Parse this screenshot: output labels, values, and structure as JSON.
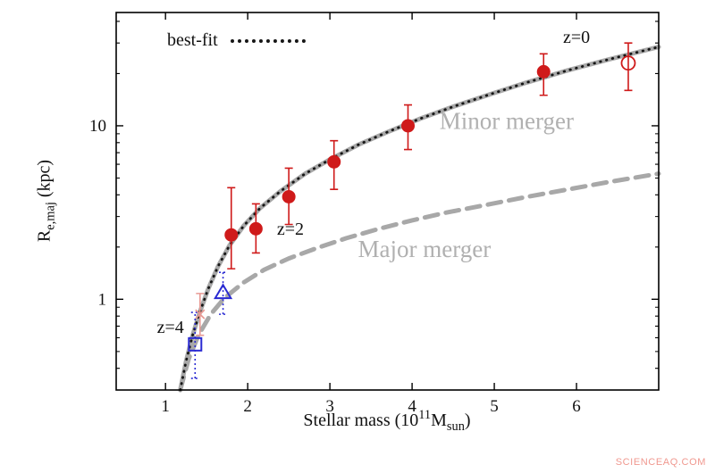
{
  "figure": {
    "legend_label": "best-fit",
    "watermark": "SCIENCEAQ.COM",
    "xlabel": {
      "prefix": "Stellar mass (10",
      "sup": "11",
      "mid": "M",
      "sub": "sun",
      "suffix": ")"
    },
    "ylabel": {
      "prefix": "R",
      "sub": "e,maj",
      "suffix": " (kpc)"
    }
  },
  "chart_data": {
    "type": "line",
    "title": "",
    "x_axis": {
      "label": "Stellar mass (10^11 Msun)",
      "scale": "linear",
      "lim": [
        0.4,
        7.0
      ],
      "ticks": [
        1,
        2,
        3,
        4,
        5,
        6
      ]
    },
    "y_axis": {
      "label": "Re,maj (kpc)",
      "scale": "log",
      "lim": [
        0.3,
        45
      ],
      "ticks": [
        1,
        10
      ],
      "minor_ticks": [
        0.4,
        0.5,
        0.6,
        0.7,
        0.8,
        0.9,
        2,
        3,
        4,
        5,
        6,
        7,
        8,
        9,
        20,
        30,
        40
      ]
    },
    "series": [
      {
        "name": "Minor merger",
        "style": "solid",
        "color": "#a8a8a8",
        "width": 5,
        "points": [
          [
            1.18,
            0.3
          ],
          [
            1.25,
            0.44
          ],
          [
            1.33,
            0.62
          ],
          [
            1.42,
            0.85
          ],
          [
            1.52,
            1.15
          ],
          [
            1.64,
            1.55
          ],
          [
            1.78,
            2.05
          ],
          [
            1.95,
            2.65
          ],
          [
            2.15,
            3.35
          ],
          [
            2.4,
            4.2
          ],
          [
            2.7,
            5.3
          ],
          [
            3.0,
            6.4
          ],
          [
            3.35,
            7.8
          ],
          [
            3.7,
            9.2
          ],
          [
            4.1,
            11.0
          ],
          [
            4.5,
            12.9
          ],
          [
            4.95,
            15.2
          ],
          [
            5.4,
            17.8
          ],
          [
            5.9,
            20.9
          ],
          [
            6.4,
            24.2
          ],
          [
            7.0,
            28.5
          ]
        ]
      },
      {
        "name": "Major merger",
        "style": "dashed",
        "color": "#a8a8a8",
        "width": 5,
        "points": [
          [
            1.18,
            0.3
          ],
          [
            1.28,
            0.45
          ],
          [
            1.4,
            0.62
          ],
          [
            1.55,
            0.82
          ],
          [
            1.72,
            1.02
          ],
          [
            1.95,
            1.25
          ],
          [
            2.2,
            1.48
          ],
          [
            2.5,
            1.72
          ],
          [
            2.85,
            1.98
          ],
          [
            3.2,
            2.25
          ],
          [
            3.6,
            2.55
          ],
          [
            4.0,
            2.85
          ],
          [
            4.4,
            3.15
          ],
          [
            4.9,
            3.5
          ],
          [
            5.4,
            3.9
          ],
          [
            5.9,
            4.3
          ],
          [
            6.4,
            4.75
          ],
          [
            7.0,
            5.3
          ]
        ]
      },
      {
        "name": "best-fit",
        "style": "dotted",
        "color": "#151515",
        "width": 2.8,
        "points": [
          [
            1.18,
            0.3
          ],
          [
            1.25,
            0.44
          ],
          [
            1.33,
            0.62
          ],
          [
            1.42,
            0.85
          ],
          [
            1.52,
            1.15
          ],
          [
            1.64,
            1.55
          ],
          [
            1.78,
            2.05
          ],
          [
            1.95,
            2.65
          ],
          [
            2.15,
            3.35
          ],
          [
            2.4,
            4.2
          ],
          [
            2.7,
            5.3
          ],
          [
            3.0,
            6.4
          ],
          [
            3.35,
            7.8
          ],
          [
            3.7,
            9.2
          ],
          [
            4.1,
            11.0
          ],
          [
            4.5,
            12.9
          ],
          [
            4.95,
            15.2
          ],
          [
            5.4,
            17.8
          ],
          [
            5.9,
            20.9
          ],
          [
            6.4,
            24.2
          ],
          [
            7.0,
            28.5
          ]
        ]
      }
    ],
    "scatter": [
      {
        "name": "red filled circles",
        "marker": "circle-filled",
        "color": "#cf1a1a",
        "size": 7,
        "err": "solid",
        "points": [
          {
            "x": 1.8,
            "y": 2.35,
            "lo": 1.5,
            "hi": 4.4
          },
          {
            "x": 2.1,
            "y": 2.55,
            "lo": 1.85,
            "hi": 3.55
          },
          {
            "x": 2.5,
            "y": 3.9,
            "lo": 2.7,
            "hi": 5.7
          },
          {
            "x": 3.05,
            "y": 6.2,
            "lo": 4.3,
            "hi": 8.2
          },
          {
            "x": 3.95,
            "y": 10.0,
            "lo": 7.3,
            "hi": 13.2
          },
          {
            "x": 5.6,
            "y": 20.5,
            "lo": 15.0,
            "hi": 26.0
          }
        ]
      },
      {
        "name": "red open circle",
        "marker": "circle-open",
        "color": "#cf1a1a",
        "size": 7.5,
        "err": "solid",
        "points": [
          {
            "x": 6.63,
            "y": 23.0,
            "lo": 16.0,
            "hi": 30.0
          }
        ]
      },
      {
        "name": "blue open square z4",
        "marker": "square-open",
        "color": "#2a2ad2",
        "size": 7,
        "err": "dotted",
        "points": [
          {
            "x": 1.36,
            "y": 0.55,
            "lo": 0.35,
            "hi": 0.84
          }
        ]
      },
      {
        "name": "blue open triangle z4",
        "marker": "triangle-open",
        "color": "#2a2ad2",
        "size": 8,
        "err": "dotted",
        "points": [
          {
            "x": 1.7,
            "y": 1.1,
            "lo": 0.82,
            "hi": 1.43
          }
        ]
      },
      {
        "name": "light red cross",
        "marker": "cross",
        "color": "#e89a94",
        "size": 5,
        "err": "solid",
        "points": [
          {
            "x": 1.42,
            "y": 0.82,
            "lo": 0.62,
            "hi": 1.08
          }
        ]
      }
    ],
    "annotations": [
      {
        "text": "z=0",
        "x": 6.0,
        "y": 30.0,
        "color": "#111111",
        "size": 20
      },
      {
        "text": "z=2",
        "x": 2.52,
        "y": 2.35,
        "color": "#111111",
        "size": 20
      },
      {
        "text": "z=4",
        "x": 1.06,
        "y": 0.64,
        "color": "#111111",
        "size": 20
      },
      {
        "text": "Minor merger",
        "x": 5.15,
        "y": 9.6,
        "color": "#b0b0b0",
        "size": 27
      },
      {
        "text": "Major merger",
        "x": 4.15,
        "y": 1.75,
        "color": "#b0b0b0",
        "size": 27
      }
    ]
  }
}
